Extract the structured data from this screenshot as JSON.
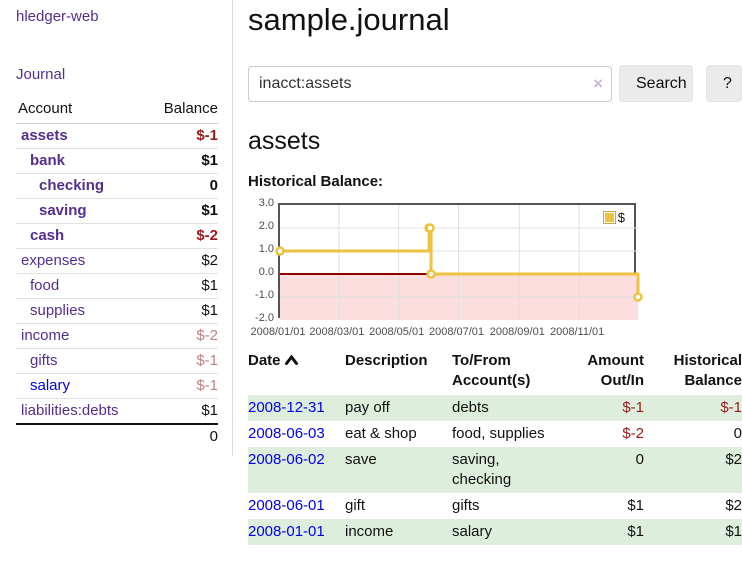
{
  "app": {
    "title": "hledger-web"
  },
  "sidebar": {
    "journal_link": "Journal",
    "table": {
      "account_header": "Account",
      "balance_header": "Balance",
      "rows": [
        {
          "name": "assets",
          "balance": "$-1",
          "indent": 1,
          "bold": true,
          "balance_class": "neg-strong"
        },
        {
          "name": "bank",
          "balance": "$1",
          "indent": 2,
          "bold": true,
          "balance_class": "pos"
        },
        {
          "name": "checking",
          "balance": "0",
          "indent": 3,
          "bold": true,
          "balance_class": "pos"
        },
        {
          "name": "saving",
          "balance": "$1",
          "indent": 3,
          "bold": true,
          "balance_class": "pos"
        },
        {
          "name": "cash",
          "balance": "$-2",
          "indent": 2,
          "bold": true,
          "balance_class": "neg-strong"
        },
        {
          "name": "expenses",
          "balance": "$2",
          "indent": 1,
          "bold": false,
          "balance_class": "pos"
        },
        {
          "name": "food",
          "balance": "$1",
          "indent": 2,
          "bold": false,
          "balance_class": "pos"
        },
        {
          "name": "supplies",
          "balance": "$1",
          "indent": 2,
          "bold": false,
          "balance_class": "pos"
        },
        {
          "name": "income",
          "balance": "$-2",
          "indent": 1,
          "bold": false,
          "balance_class": "neg-soft"
        },
        {
          "name": "gifts",
          "balance": "$-1",
          "indent": 2,
          "bold": false,
          "balance_class": "neg-soft"
        },
        {
          "name": "salary",
          "balance": "$-1",
          "indent": 2,
          "bold": false,
          "balance_class": "neg-soft",
          "link_class": "unvisited"
        },
        {
          "name": "liabilities:debts",
          "balance": "$1",
          "indent": 1,
          "bold": false,
          "balance_class": "pos"
        }
      ],
      "total": "0"
    }
  },
  "header": {
    "title": "sample.journal"
  },
  "search": {
    "value": "inacct:assets",
    "clear_icon": "×",
    "button_label": "Search",
    "help_label": "?"
  },
  "main": {
    "heading": "assets",
    "chart_label": "Historical Balance:"
  },
  "chart_data": {
    "type": "line",
    "step": true,
    "series": [
      {
        "name": "$",
        "color": "#edc240",
        "points": [
          [
            "2008-01-01",
            1
          ],
          [
            "2008-06-01",
            2
          ],
          [
            "2008-06-02",
            2
          ],
          [
            "2008-06-03",
            0
          ],
          [
            "2008-12-31",
            -1
          ]
        ]
      }
    ],
    "xlim": [
      "2008-01-01",
      "2008-12-31"
    ],
    "ylim": [
      -2,
      3
    ],
    "y_ticks": [
      3.0,
      2.0,
      1.0,
      0.0,
      -1.0,
      -2.0
    ],
    "x_tick_dates": [
      "2008-01-01",
      "2008-03-01",
      "2008-05-01",
      "2008-07-01",
      "2008-09-01",
      "2008-11-01"
    ],
    "x_tick_labels": [
      "2008/01/01",
      "2008/03/01",
      "2008/05/01",
      "2008/07/01",
      "2008/09/01",
      "2008/11/01"
    ],
    "grid": true,
    "gridline_color": "#e0e0e0",
    "negative_region_color": "#fcdede",
    "zero_line_color": "#8b0000",
    "border_color": "#545454",
    "legend": {
      "label": "$",
      "position": "top-right"
    }
  },
  "register": {
    "headers": {
      "date": "Date",
      "description": "Description",
      "accounts": "To/From Account(s)",
      "amount": "Amount Out/In",
      "balance": "Historical Balance"
    },
    "sort": "ascending",
    "rows": [
      {
        "date": "2008-12-31",
        "description": "pay off",
        "accounts": "debts",
        "amount": "$-1",
        "balance": "$-1",
        "amount_class": "neg",
        "balance_class": "neg"
      },
      {
        "date": "2008-06-03",
        "description": "eat & shop",
        "accounts": "food, supplies",
        "amount": "$-2",
        "balance": "0",
        "amount_class": "neg",
        "balance_class": "pos"
      },
      {
        "date": "2008-06-02",
        "description": "save",
        "accounts": "saving, checking",
        "amount": "0",
        "balance": "$2",
        "amount_class": "pos",
        "balance_class": "pos"
      },
      {
        "date": "2008-06-01",
        "description": "gift",
        "accounts": "gifts",
        "amount": "$1",
        "balance": "$2",
        "amount_class": "pos",
        "balance_class": "pos"
      },
      {
        "date": "2008-01-01",
        "description": "income",
        "accounts": "salary",
        "amount": "$1",
        "balance": "$1",
        "amount_class": "pos",
        "balance_class": "pos"
      }
    ]
  },
  "colors": {
    "link_purple": "#552e8e",
    "link_blue": "#0000ee",
    "negative_strong": "#9a1b1b",
    "negative_soft": "#c1807f",
    "row_stripe_green": "#ddeedd",
    "series_yellow": "#edc240",
    "negative_zone_pink": "#fcdede",
    "zero_line_red": "#8b0000"
  }
}
